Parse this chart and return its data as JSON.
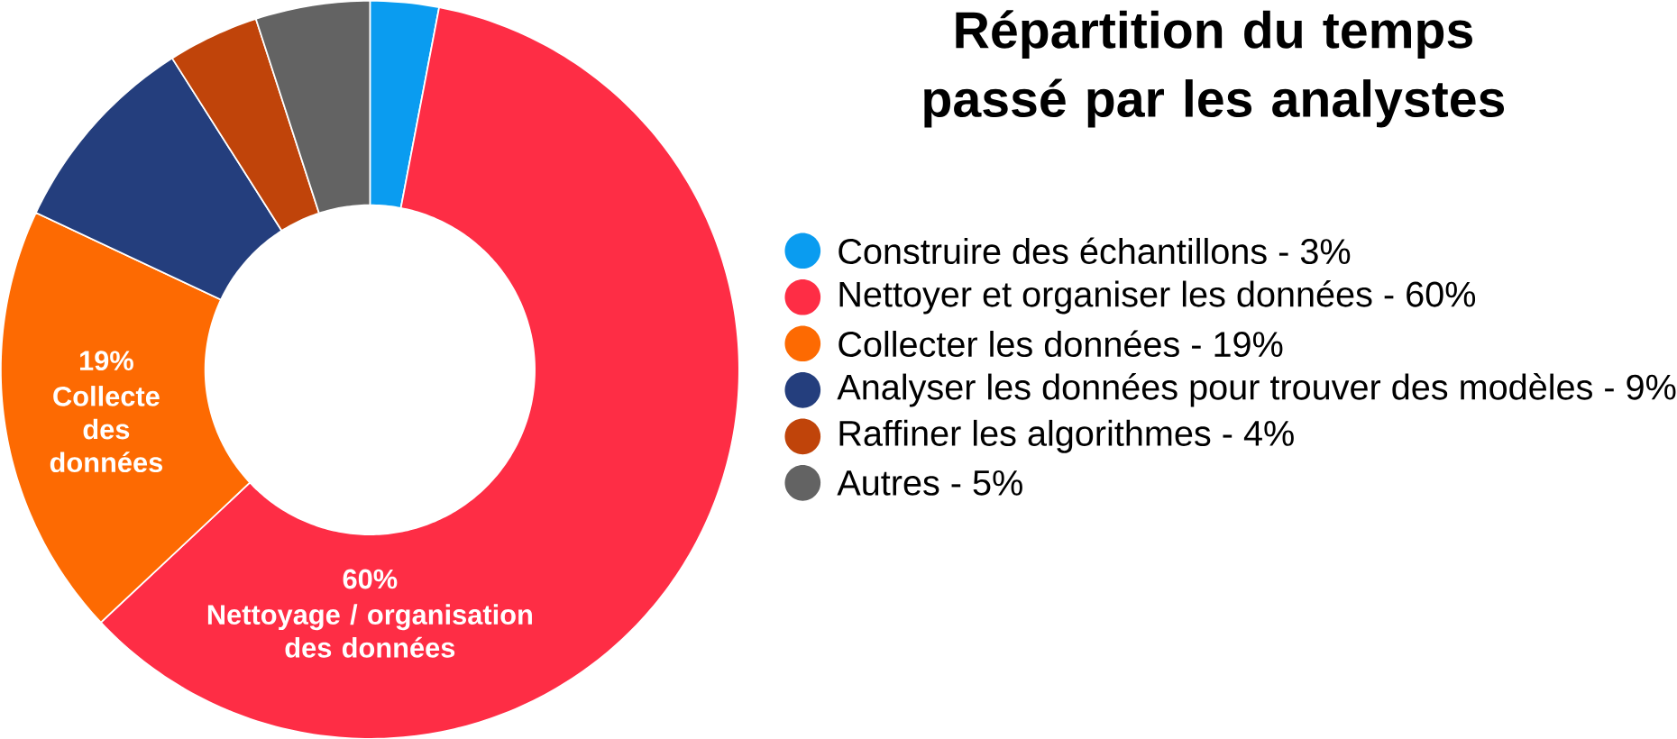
{
  "chart_data": {
    "type": "donut",
    "title": "Répartition du temps passé par les analystes",
    "categories": [
      "Construire des échantillons - 3%",
      "Nettoyer et organiser les données - 60%",
      "Collecter les données - 19%",
      "Analyser les données pour trouver des modèles - 9%",
      "Raffiner les algorithmes - 4%",
      "Autres - 5%"
    ],
    "values": [
      3,
      60,
      19,
      9,
      4,
      5
    ],
    "colors": [
      "#0a9cf0",
      "#fe2d45",
      "#fd6a02",
      "#243e7d",
      "#c0440a",
      "#636363"
    ],
    "legend": "right",
    "annotations": [
      {
        "text": "60%",
        "x": "Nettoyer et organiser les données - 60%"
      },
      {
        "text": "Nettoyage / organisation des données",
        "x": "Nettoyer et organiser les données - 60%"
      },
      {
        "text": "19%",
        "x": "Collecter les données - 19%"
      },
      {
        "text": "Collecte des données",
        "x": "Collecter les données - 19%"
      }
    ]
  }
}
